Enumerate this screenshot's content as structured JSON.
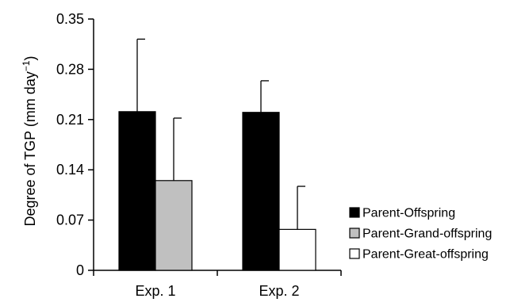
{
  "chart_data": {
    "type": "bar",
    "categories": [
      "Exp. 1",
      "Exp. 2"
    ],
    "series": [
      {
        "name": "Parent-Offspring",
        "values": [
          0.221,
          0.22
        ],
        "errors": [
          0.101,
          0.044
        ],
        "color": "#000000"
      },
      {
        "name": "Parent-Grand-offspring",
        "values": [
          0.125,
          null
        ],
        "errors": [
          0.087,
          null
        ],
        "color": "#c0c0c0"
      },
      {
        "name": "Parent-Great-offspring",
        "values": [
          null,
          0.057
        ],
        "errors": [
          null,
          0.06
        ],
        "color": "#ffffff"
      }
    ],
    "title": "",
    "xlabel": "",
    "ylabel": "Degree of TGP (mm day",
    "ylabel_sup": "−1",
    "ylabel_close": ")",
    "ylim": [
      0,
      0.35
    ],
    "yticks": [
      0,
      0.07,
      0.14,
      0.21,
      0.28,
      0.35
    ],
    "ytick_labels": [
      "0",
      "0.07",
      "0.14",
      "0.21",
      "0.28",
      "0.35"
    ],
    "grid": false,
    "legend_position": "bottom-right"
  }
}
